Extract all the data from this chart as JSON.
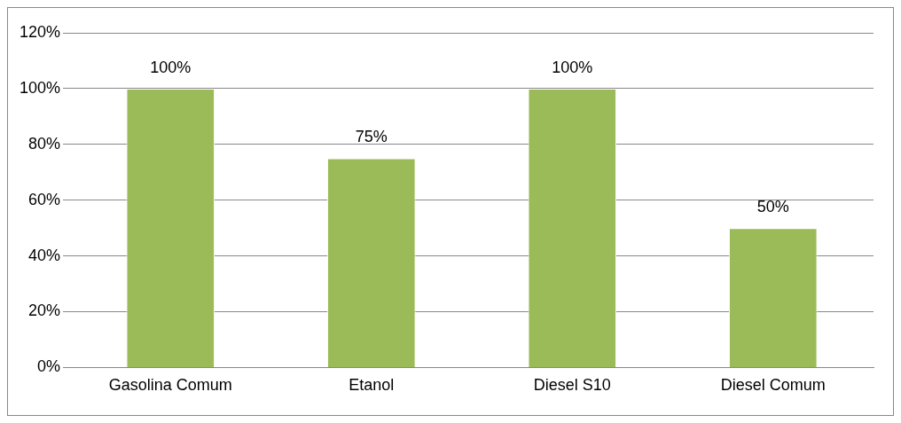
{
  "chart_data": {
    "type": "bar",
    "categories": [
      "Gasolina Comum",
      "Etanol",
      "Diesel S10",
      "Diesel Comum"
    ],
    "values": [
      100,
      75,
      100,
      50
    ],
    "value_labels": [
      "100%",
      "75%",
      "100%",
      "50%"
    ],
    "color": "#9bbb59",
    "ylim": [
      0,
      120
    ],
    "yticks": [
      {
        "value": 0,
        "label": "0%"
      },
      {
        "value": 20,
        "label": "20%"
      },
      {
        "value": 40,
        "label": "40%"
      },
      {
        "value": 60,
        "label": "60%"
      },
      {
        "value": 80,
        "label": "80%"
      },
      {
        "value": 100,
        "label": "100%"
      },
      {
        "value": 120,
        "label": "120%"
      }
    ],
    "grid": "y",
    "legend": false
  }
}
